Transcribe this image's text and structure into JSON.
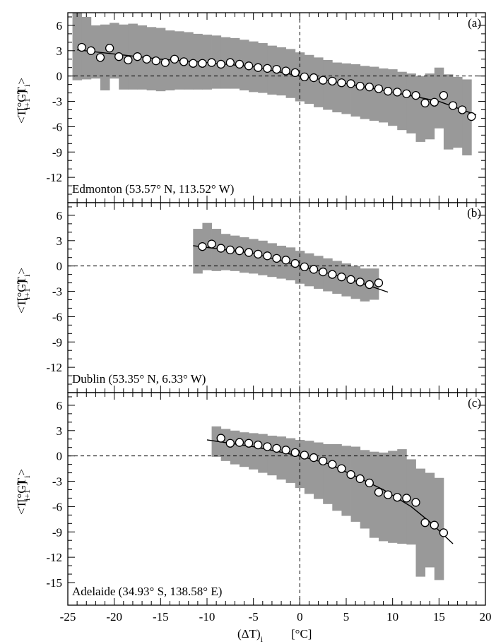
{
  "chart_data": {
    "type": "scatter",
    "x_axis": {
      "label_main": "(ΔT)",
      "label_sub": "i",
      "label_unit": "[°C]",
      "range": [
        -25,
        20
      ],
      "ticks": [
        "-25",
        "-20",
        "-15",
        "-10",
        "-5",
        "0",
        "5",
        "10",
        "15",
        "20"
      ]
    },
    "y_axis": {
      "label_open": "<T",
      "label_sub1": "i+1",
      "label_mid": "-T",
      "label_sub2": "i",
      "label_close": ">",
      "label_unit": "[°C]"
    },
    "panels": [
      {
        "letter": "(a)",
        "station": "Edmonton (53.57° N, 113.52° W)",
        "ylim": [
          -15,
          7.5
        ],
        "yticks": [
          "6",
          "3",
          "0",
          "-3",
          "-6",
          "-9",
          "-12"
        ],
        "ytick_values": [
          6,
          3,
          0,
          -3,
          -6,
          -9,
          -12
        ],
        "points": [
          [
            -23.5,
            3.4
          ],
          [
            -22.5,
            3.0
          ],
          [
            -21.5,
            2.2
          ],
          [
            -20.5,
            3.3
          ],
          [
            -19.5,
            2.3
          ],
          [
            -18.5,
            1.9
          ],
          [
            -17.5,
            2.3
          ],
          [
            -16.5,
            2.0
          ],
          [
            -15.5,
            1.8
          ],
          [
            -14.5,
            1.6
          ],
          [
            -13.5,
            2.0
          ],
          [
            -12.5,
            1.7
          ],
          [
            -11.5,
            1.5
          ],
          [
            -10.5,
            1.5
          ],
          [
            -9.5,
            1.6
          ],
          [
            -8.5,
            1.4
          ],
          [
            -7.5,
            1.6
          ],
          [
            -6.5,
            1.4
          ],
          [
            -5.5,
            1.2
          ],
          [
            -4.5,
            1.0
          ],
          [
            -3.5,
            0.9
          ],
          [
            -2.5,
            0.8
          ],
          [
            -1.5,
            0.6
          ],
          [
            -0.5,
            0.4
          ],
          [
            0.5,
            -0.1
          ],
          [
            1.5,
            -0.2
          ],
          [
            2.5,
            -0.5
          ],
          [
            3.5,
            -0.6
          ],
          [
            4.5,
            -0.8
          ],
          [
            5.5,
            -0.9
          ],
          [
            6.5,
            -1.2
          ],
          [
            7.5,
            -1.3
          ],
          [
            8.5,
            -1.5
          ],
          [
            9.5,
            -1.8
          ],
          [
            10.5,
            -1.9
          ],
          [
            11.5,
            -2.1
          ],
          [
            12.5,
            -2.3
          ],
          [
            13.5,
            -3.2
          ],
          [
            14.5,
            -3.1
          ],
          [
            15.5,
            -2.3
          ],
          [
            16.5,
            -3.5
          ],
          [
            17.5,
            -4.0
          ],
          [
            18.5,
            -4.8
          ]
        ],
        "band": [
          [
            -24,
            -0.5,
            7.5
          ],
          [
            -23,
            -0.4,
            7.0
          ],
          [
            -22,
            -0.3,
            6.0
          ],
          [
            -21,
            -1.7,
            6.1
          ],
          [
            -20,
            -0.3,
            6.3
          ],
          [
            -19,
            -1.6,
            6.1
          ],
          [
            -18,
            -1.6,
            6.2
          ],
          [
            -17,
            -1.6,
            6.0
          ],
          [
            -16,
            -1.7,
            5.8
          ],
          [
            -15,
            -1.8,
            5.7
          ],
          [
            -14,
            -1.7,
            5.4
          ],
          [
            -13,
            -1.6,
            5.3
          ],
          [
            -12,
            -1.6,
            5.2
          ],
          [
            -11,
            -1.6,
            5.0
          ],
          [
            -10,
            -1.6,
            4.9
          ],
          [
            -9,
            -1.5,
            4.8
          ],
          [
            -8,
            -1.5,
            4.6
          ],
          [
            -7,
            -1.5,
            4.5
          ],
          [
            -6,
            -1.7,
            4.3
          ],
          [
            -5,
            -1.9,
            4.1
          ],
          [
            -4,
            -2.0,
            3.9
          ],
          [
            -3,
            -2.2,
            3.6
          ],
          [
            -2,
            -2.3,
            3.4
          ],
          [
            -1,
            -2.6,
            3.2
          ],
          [
            0,
            -3.0,
            2.8
          ],
          [
            1,
            -3.3,
            2.5
          ],
          [
            2,
            -3.7,
            2.2
          ],
          [
            3,
            -4.0,
            1.9
          ],
          [
            4,
            -4.3,
            1.6
          ],
          [
            5,
            -4.5,
            1.5
          ],
          [
            6,
            -4.8,
            1.4
          ],
          [
            7,
            -5.1,
            1.2
          ],
          [
            8,
            -5.3,
            1.1
          ],
          [
            9,
            -5.5,
            0.9
          ],
          [
            10,
            -5.9,
            0.8
          ],
          [
            11,
            -6.4,
            0.5
          ],
          [
            12,
            -6.8,
            0.3
          ],
          [
            13,
            -7.8,
            0.0
          ],
          [
            14,
            -7.5,
            0.3
          ],
          [
            15,
            -6.2,
            1.0
          ],
          [
            16,
            -8.7,
            0.2
          ],
          [
            17,
            -8.5,
            -0.1
          ],
          [
            18,
            -9.4,
            -0.4
          ]
        ],
        "fit_line": [
          [
            -24,
            3.1
          ],
          [
            -15,
            2.0
          ],
          [
            -10,
            1.6
          ],
          [
            -5,
            1.1
          ],
          [
            0,
            0.0
          ],
          [
            5,
            -0.9
          ],
          [
            10,
            -1.9
          ],
          [
            15,
            -3.0
          ],
          [
            19,
            -4.6
          ]
        ]
      },
      {
        "letter": "(b)",
        "station": "Dublin (53.35° N, 6.33° W)",
        "ylim": [
          -15,
          7.5
        ],
        "yticks": [
          "6",
          "3",
          "0",
          "-3",
          "-6",
          "-9",
          "-12"
        ],
        "ytick_values": [
          6,
          3,
          0,
          -3,
          -6,
          -9,
          -12
        ],
        "points": [
          [
            -10.5,
            2.3
          ],
          [
            -9.5,
            2.6
          ],
          [
            -8.5,
            2.1
          ],
          [
            -7.5,
            1.9
          ],
          [
            -6.5,
            1.8
          ],
          [
            -5.5,
            1.6
          ],
          [
            -4.5,
            1.4
          ],
          [
            -3.5,
            1.2
          ],
          [
            -2.5,
            0.9
          ],
          [
            -1.5,
            0.7
          ],
          [
            -0.5,
            0.3
          ],
          [
            0.5,
            -0.1
          ],
          [
            1.5,
            -0.4
          ],
          [
            2.5,
            -0.7
          ],
          [
            3.5,
            -1.0
          ],
          [
            4.5,
            -1.3
          ],
          [
            5.5,
            -1.6
          ],
          [
            6.5,
            -1.9
          ],
          [
            7.5,
            -2.2
          ],
          [
            8.5,
            -2.0
          ]
        ],
        "band": [
          [
            -11,
            -0.9,
            4.4
          ],
          [
            -10,
            -0.5,
            5.1
          ],
          [
            -9,
            -0.6,
            4.4
          ],
          [
            -8,
            -0.5,
            3.8
          ],
          [
            -7,
            -0.6,
            3.6
          ],
          [
            -6,
            -0.8,
            3.4
          ],
          [
            -5,
            -0.9,
            3.2
          ],
          [
            -4,
            -1.1,
            3.0
          ],
          [
            -3,
            -1.3,
            2.7
          ],
          [
            -2,
            -1.5,
            2.4
          ],
          [
            -1,
            -1.7,
            2.2
          ],
          [
            0,
            -2.1,
            1.8
          ],
          [
            1,
            -2.4,
            1.5
          ],
          [
            2,
            -2.7,
            1.2
          ],
          [
            3,
            -3.0,
            0.9
          ],
          [
            4,
            -3.3,
            0.6
          ],
          [
            5,
            -3.6,
            0.3
          ],
          [
            6,
            -3.9,
            0.0
          ],
          [
            7,
            -4.2,
            -0.3
          ],
          [
            8,
            -4.0,
            -0.3
          ]
        ],
        "fit_line": [
          [
            -11.5,
            2.4
          ],
          [
            -5,
            1.5
          ],
          [
            0,
            0.0
          ],
          [
            5,
            -1.4
          ],
          [
            9.5,
            -3.1
          ]
        ]
      },
      {
        "letter": "(c)",
        "station": "Adelaide (34.93° S,  138.58° E)",
        "ylim": [
          -15,
          7.5
        ],
        "yticks": [
          "6",
          "3",
          "0",
          "-3",
          "-6",
          "-9",
          "-12",
          "-15"
        ],
        "ytick_values": [
          6,
          3,
          0,
          -3,
          -6,
          -9,
          -12,
          -15
        ],
        "points": [
          [
            -8.5,
            2.1
          ],
          [
            -7.5,
            1.5
          ],
          [
            -6.5,
            1.6
          ],
          [
            -5.5,
            1.5
          ],
          [
            -4.5,
            1.3
          ],
          [
            -3.5,
            1.1
          ],
          [
            -2.5,
            0.9
          ],
          [
            -1.5,
            0.7
          ],
          [
            -0.5,
            0.4
          ],
          [
            0.5,
            0.1
          ],
          [
            1.5,
            -0.2
          ],
          [
            2.5,
            -0.6
          ],
          [
            3.5,
            -1.0
          ],
          [
            4.5,
            -1.5
          ],
          [
            5.5,
            -2.2
          ],
          [
            6.5,
            -2.7
          ],
          [
            7.5,
            -3.2
          ],
          [
            8.5,
            -4.3
          ],
          [
            9.5,
            -4.6
          ],
          [
            10.5,
            -4.9
          ],
          [
            11.5,
            -5.0
          ],
          [
            12.5,
            -5.5
          ],
          [
            13.5,
            -7.9
          ],
          [
            14.5,
            -8.2
          ],
          [
            15.5,
            -9.1
          ]
        ],
        "band": [
          [
            -9,
            -0.1,
            3.5
          ],
          [
            -8,
            -0.6,
            3.2
          ],
          [
            -7,
            -1.0,
            3.0
          ],
          [
            -6,
            -1.3,
            2.8
          ],
          [
            -5,
            -1.6,
            2.7
          ],
          [
            -4,
            -2.0,
            2.6
          ],
          [
            -3,
            -2.3,
            2.4
          ],
          [
            -2,
            -2.8,
            2.3
          ],
          [
            -1,
            -3.2,
            2.1
          ],
          [
            0,
            -3.8,
            1.9
          ],
          [
            1,
            -4.5,
            1.8
          ],
          [
            2,
            -5.1,
            1.6
          ],
          [
            3,
            -5.7,
            1.4
          ],
          [
            4,
            -6.5,
            1.4
          ],
          [
            5,
            -7.1,
            1.2
          ],
          [
            6,
            -7.8,
            1.1
          ],
          [
            7,
            -8.6,
            0.7
          ],
          [
            8,
            -9.7,
            0.5
          ],
          [
            9,
            -10.1,
            0.4
          ],
          [
            10,
            -10.3,
            0.6
          ],
          [
            11,
            -10.4,
            0.8
          ],
          [
            12,
            -10.5,
            -0.4
          ],
          [
            13,
            -14.3,
            -1.5
          ],
          [
            14,
            -13.2,
            -2.0
          ],
          [
            15,
            -14.7,
            -2.6
          ]
        ],
        "fit_line": [
          [
            -10,
            1.9
          ],
          [
            -5,
            1.1
          ],
          [
            0,
            0.0
          ],
          [
            3,
            -0.9
          ],
          [
            6,
            -2.4
          ],
          [
            9,
            -4.0
          ],
          [
            12,
            -6.0
          ],
          [
            14,
            -7.8
          ],
          [
            16.5,
            -10.4
          ]
        ]
      }
    ]
  }
}
